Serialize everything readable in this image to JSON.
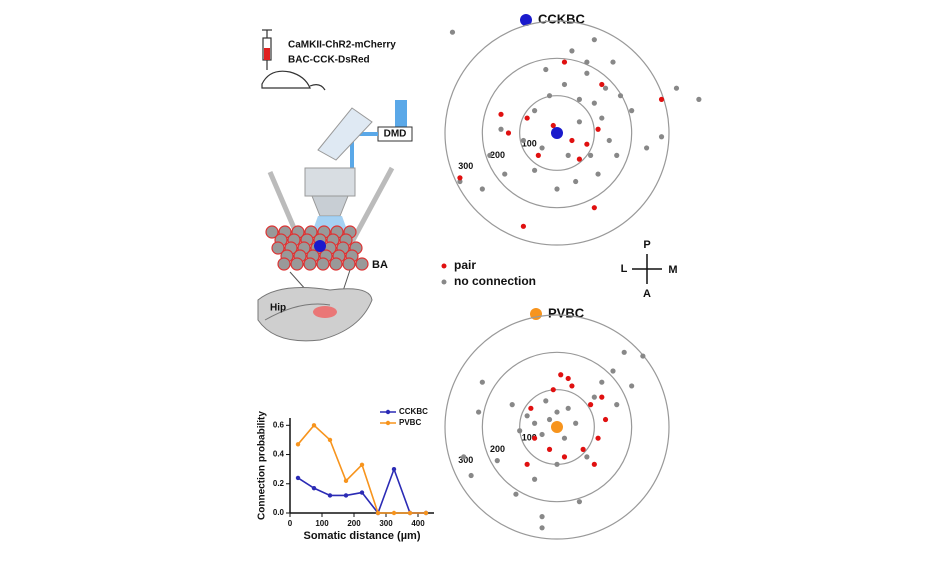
{
  "diagram": {
    "labels": [
      "CaMKII-ChR2-mCherry",
      "BAC-CCK-DsRed"
    ],
    "device": "DMD",
    "region": "BA",
    "slice": "Hip",
    "orientation": {
      "up": "P",
      "left": "L",
      "right": "M",
      "down": "A"
    }
  },
  "chart_data": [
    {
      "type": "polar-map",
      "title": "CCKBC",
      "cell_color": "#1a1acc",
      "rings": [
        100,
        200,
        300
      ],
      "series": [
        {
          "name": "pair",
          "color": "#e01010",
          "x": [
            20,
            120,
            -150,
            -80,
            -10,
            40,
            80,
            110,
            -50,
            -260,
            100,
            -90,
            280,
            -130,
            60
          ],
          "y": [
            190,
            130,
            50,
            40,
            20,
            -20,
            -30,
            10,
            -60,
            -120,
            -200,
            -250,
            90,
            0,
            -70
          ]
        },
        {
          "name": "no connection",
          "color": "#888888",
          "x": [
            -280,
            40,
            100,
            150,
            80,
            20,
            -20,
            60,
            100,
            120,
            140,
            90,
            30,
            -40,
            -90,
            -150,
            -180,
            -140,
            -60,
            0,
            50,
            110,
            160,
            200,
            320,
            380,
            -260,
            -200,
            80,
            -30,
            130,
            170,
            60,
            -60,
            240,
            280
          ],
          "y": [
            270,
            220,
            250,
            190,
            160,
            130,
            100,
            90,
            80,
            40,
            -20,
            -60,
            -60,
            -40,
            -20,
            10,
            -60,
            -110,
            -100,
            -150,
            -130,
            -110,
            -60,
            60,
            120,
            90,
            -130,
            -150,
            190,
            170,
            120,
            100,
            30,
            60,
            -40,
            -10
          ]
        }
      ]
    },
    {
      "type": "polar-map",
      "title": "PVBC",
      "cell_color": "#f7941d",
      "rings": [
        100,
        200,
        300
      ],
      "series": [
        {
          "color": "#e01010",
          "x": [
            -10,
            40,
            90,
            130,
            110,
            70,
            20,
            -20,
            -60,
            -70,
            30,
            120,
            100,
            -80,
            10
          ],
          "y": [
            100,
            110,
            60,
            20,
            -30,
            -60,
            -80,
            -60,
            -30,
            50,
            130,
            80,
            -100,
            -100,
            140
          ]
        },
        {
          "color": "#888888",
          "x": [
            -20,
            0,
            -40,
            -60,
            20,
            -80,
            30,
            50,
            -100,
            -30,
            150,
            180,
            120,
            200,
            160,
            -200,
            -210,
            -250,
            -230,
            -40,
            -40,
            60,
            -110,
            -160,
            0,
            -120,
            -60,
            80,
            230,
            100
          ],
          "y": [
            20,
            40,
            -20,
            10,
            -30,
            30,
            50,
            10,
            -10,
            70,
            150,
            200,
            120,
            110,
            60,
            120,
            40,
            -80,
            -130,
            -240,
            -270,
            -200,
            -180,
            -90,
            -100,
            60,
            -140,
            -80,
            190,
            80
          ]
        }
      ]
    },
    {
      "type": "line",
      "x_label": "Somatic distance (µm)",
      "y_label": "Connection probability",
      "x": [
        25,
        75,
        125,
        175,
        225,
        275,
        325,
        375,
        425
      ],
      "series": [
        {
          "name": "CCKBC",
          "color": "#2b2bb5",
          "values": [
            0.24,
            0.17,
            0.12,
            0.12,
            0.14,
            0,
            0.3,
            0,
            0
          ]
        },
        {
          "name": "PVBC",
          "color": "#f7941d",
          "values": [
            0.47,
            0.6,
            0.5,
            0.22,
            0.33,
            0,
            0,
            0,
            0
          ]
        }
      ],
      "xlim": [
        0,
        450
      ],
      "xticks": [
        0,
        100,
        200,
        300,
        400
      ],
      "ylim": [
        0,
        0.65
      ],
      "yticks": [
        {
          "value": 0,
          "label": "0.0"
        },
        0.2,
        0.4,
        0.6
      ]
    }
  ]
}
